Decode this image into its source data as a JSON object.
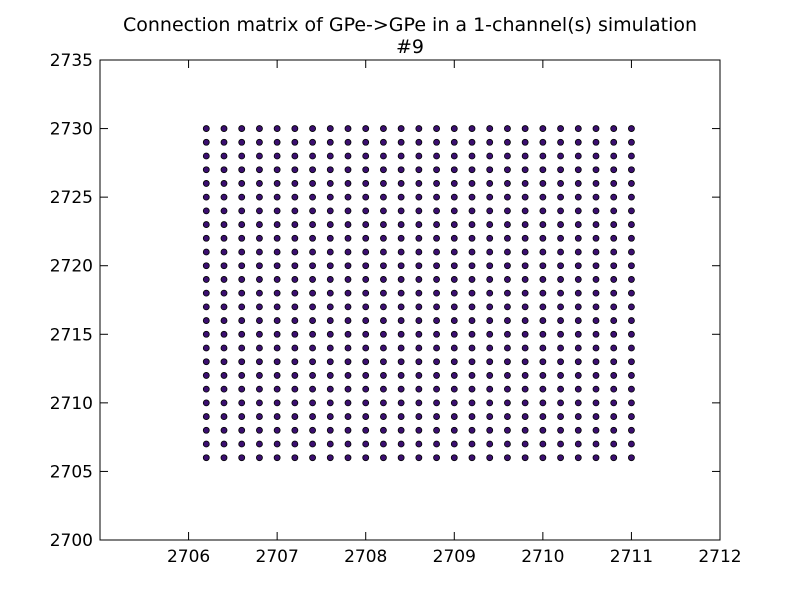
{
  "chart_data": {
    "type": "scatter",
    "title": "Connection matrix of GPe->GPe in a 1-channel(s) simulation",
    "subtitle": "#9",
    "xlabel": "",
    "ylabel": "",
    "xlim": [
      2705,
      2712
    ],
    "ylim": [
      2700,
      2735
    ],
    "xticks": [
      2706,
      2707,
      2708,
      2709,
      2710,
      2711,
      2712
    ],
    "yticks": [
      2700,
      2705,
      2710,
      2715,
      2720,
      2725,
      2730,
      2735
    ],
    "grid": false,
    "point_color": "#3b0f70",
    "point_edge_color": "#000000",
    "x": [
      2706.2,
      2706.4,
      2706.6,
      2706.8,
      2707.0,
      2707.2,
      2707.4,
      2707.6,
      2707.8,
      2708.0,
      2708.2,
      2708.4,
      2708.6,
      2708.8,
      2709.0,
      2709.2,
      2709.4,
      2709.6,
      2709.8,
      2710.0,
      2710.2,
      2710.4,
      2710.6,
      2710.8,
      2711.0
    ],
    "y": [
      2706,
      2707,
      2708,
      2709,
      2710,
      2711,
      2712,
      2713,
      2714,
      2715,
      2716,
      2717,
      2718,
      2719,
      2720,
      2721,
      2722,
      2723,
      2724,
      2725,
      2726,
      2727,
      2728,
      2729,
      2730
    ],
    "points": "all-pairs"
  }
}
